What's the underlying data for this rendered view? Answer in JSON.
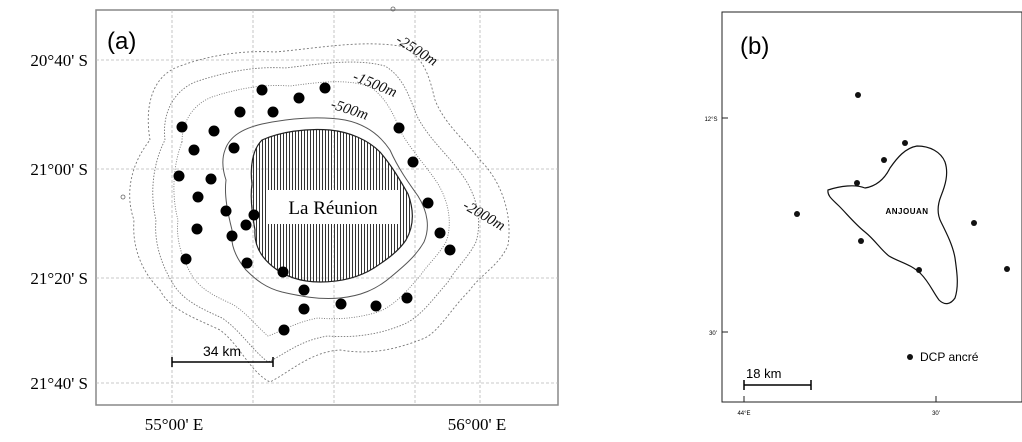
{
  "panel_a": {
    "label": "(a)",
    "island_name": "La Réunion",
    "lat_labels": [
      "20°40' S",
      "21°00' S",
      "21°20' S",
      "21°40' S"
    ],
    "lon_labels": [
      "55°00' E",
      "56°00' E"
    ],
    "depth_labels": [
      "-2500m",
      "-1500m",
      "-500m",
      "-2000m"
    ],
    "scale_label": "34 km",
    "colors": {
      "frame": "#888888",
      "grid": "#b8b8b8",
      "contour": "#666666",
      "dot": "#000000"
    }
  },
  "panel_b": {
    "label": "(b)",
    "island_name": "ANJOUAN",
    "lat_labels": [
      "12°S",
      "30'"
    ],
    "lon_labels": [
      "44°E",
      "30'"
    ],
    "scale_label": "18 km",
    "legend_label": "DCP ancré"
  }
}
